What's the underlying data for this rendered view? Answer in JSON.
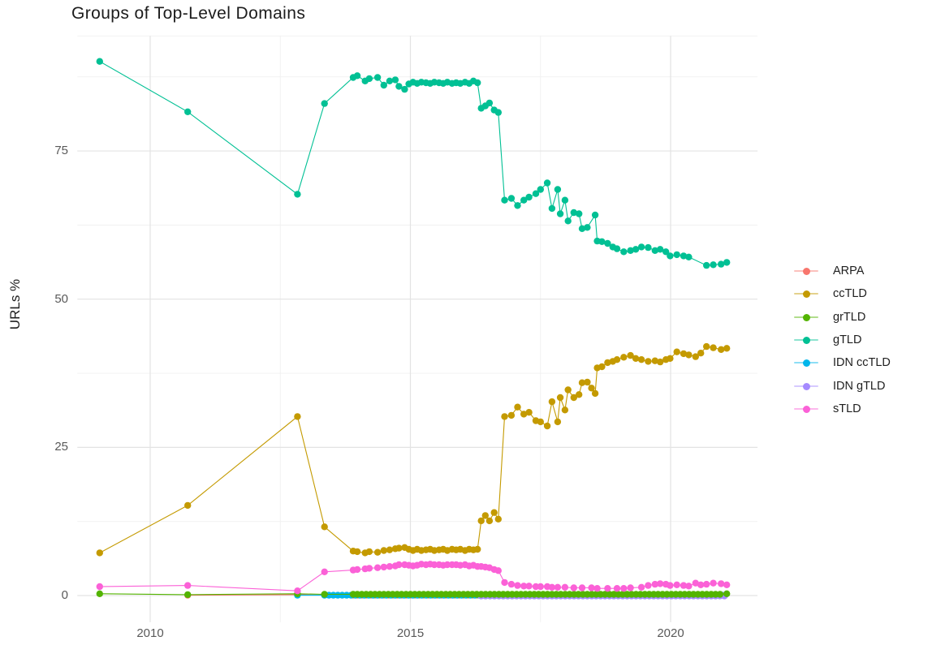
{
  "title": "Groups of Top-Level Domains",
  "chart_data": {
    "type": "line",
    "title": "Groups of Top-Level Domains",
    "xlabel": "",
    "ylabel": "URLs %",
    "x_ticks": [
      2010,
      2015,
      2020
    ],
    "x_tick_labels": [
      "2010",
      "2015",
      "2020"
    ],
    "x_minor_ticks": [
      2012.5,
      2017.5
    ],
    "y_ticks": [
      0,
      25,
      50,
      75
    ],
    "y_tick_labels": [
      "0",
      "25",
      "50",
      "75"
    ],
    "y_minor_ticks": [
      12.5,
      37.5,
      62.5,
      87.5
    ],
    "xlim": [
      2008.6,
      2021.67
    ],
    "ylim": [
      -4.5,
      94.4
    ],
    "grid": true,
    "legend_position": "right",
    "legend": [
      {
        "label": "ARPA",
        "color": "#F8766D"
      },
      {
        "label": "ccTLD",
        "color": "#C49A00"
      },
      {
        "label": "grTLD",
        "color": "#53B400"
      },
      {
        "label": "gTLD",
        "color": "#00C094"
      },
      {
        "label": "IDN ccTLD",
        "color": "#00B6EB"
      },
      {
        "label": "IDN gTLD",
        "color": "#A58AFF"
      },
      {
        "label": "sTLD",
        "color": "#FB61D7"
      }
    ],
    "series": [
      {
        "name": "ARPA",
        "color": "#F8766D",
        "points": [
          [
            2010.72,
            0.05
          ],
          [
            2012.83,
            0.15
          ],
          [
            2013.35,
            0.08
          ]
        ],
        "fill": {
          "from": 2013.9,
          "to": 2021.08,
          "step": 0.085,
          "value": 0.05
        }
      },
      {
        "name": "IDN ccTLD",
        "color": "#00B6EB",
        "points": [
          [
            2012.83,
            0.05
          ]
        ],
        "fill": {
          "from": 2013.35,
          "to": 2021.08,
          "step": 0.085,
          "value": 0.05
        }
      },
      {
        "name": "IDN gTLD",
        "color": "#A58AFF",
        "r": 4.6,
        "points": [],
        "fill": {
          "from": 2016.36,
          "to": 2021.08,
          "step": 0.085,
          "value": 0.0
        }
      },
      {
        "name": "grTLD",
        "color": "#53B400",
        "points": [
          [
            2009.03,
            0.3
          ],
          [
            2010.72,
            0.15
          ],
          [
            2012.83,
            0.3
          ],
          [
            2013.35,
            0.2
          ],
          [
            2013.9,
            0.2
          ]
        ],
        "fill": {
          "from": 2013.98,
          "to": 2021.0,
          "step": 0.085,
          "value": 0.2
        },
        "tail": [
          [
            2021.08,
            0.3
          ]
        ]
      },
      {
        "name": "gTLD",
        "color": "#00C094",
        "points": [
          [
            2009.03,
            90.1
          ],
          [
            2010.72,
            81.6
          ],
          [
            2012.83,
            67.7
          ],
          [
            2013.35,
            83.0
          ],
          [
            2013.9,
            87.4
          ],
          [
            2013.98,
            87.7
          ],
          [
            2014.13,
            86.8
          ],
          [
            2014.21,
            87.2
          ],
          [
            2014.37,
            87.4
          ],
          [
            2014.49,
            86.1
          ],
          [
            2014.6,
            86.8
          ],
          [
            2014.71,
            87.0
          ],
          [
            2014.78,
            85.9
          ],
          [
            2014.89,
            85.4
          ],
          [
            2014.97,
            86.3
          ],
          [
            2015.05,
            86.6
          ],
          [
            2015.13,
            86.4
          ],
          [
            2015.21,
            86.6
          ],
          [
            2015.3,
            86.5
          ],
          [
            2015.38,
            86.4
          ],
          [
            2015.46,
            86.6
          ],
          [
            2015.55,
            86.5
          ],
          [
            2015.63,
            86.4
          ],
          [
            2015.71,
            86.6
          ],
          [
            2015.8,
            86.4
          ],
          [
            2015.88,
            86.5
          ],
          [
            2015.96,
            86.4
          ],
          [
            2016.05,
            86.6
          ],
          [
            2016.13,
            86.4
          ],
          [
            2016.21,
            86.8
          ],
          [
            2016.29,
            86.5
          ],
          [
            2016.36,
            82.2
          ],
          [
            2016.44,
            82.6
          ],
          [
            2016.52,
            83.1
          ],
          [
            2016.61,
            81.9
          ],
          [
            2016.69,
            81.5
          ],
          [
            2016.81,
            66.7
          ],
          [
            2016.94,
            67.0
          ],
          [
            2017.06,
            65.8
          ],
          [
            2017.18,
            66.7
          ],
          [
            2017.28,
            67.2
          ],
          [
            2017.41,
            67.8
          ],
          [
            2017.5,
            68.5
          ],
          [
            2017.63,
            69.6
          ],
          [
            2017.72,
            65.3
          ],
          [
            2017.83,
            68.5
          ],
          [
            2017.88,
            64.4
          ],
          [
            2017.97,
            66.7
          ],
          [
            2018.03,
            63.2
          ],
          [
            2018.14,
            64.6
          ],
          [
            2018.24,
            64.4
          ],
          [
            2018.3,
            61.9
          ],
          [
            2018.4,
            62.1
          ],
          [
            2018.55,
            64.2
          ],
          [
            2018.59,
            59.8
          ],
          [
            2018.68,
            59.7
          ],
          [
            2018.79,
            59.4
          ],
          [
            2018.89,
            58.8
          ],
          [
            2018.97,
            58.5
          ],
          [
            2019.1,
            58.0
          ],
          [
            2019.23,
            58.2
          ],
          [
            2019.33,
            58.4
          ],
          [
            2019.44,
            58.8
          ],
          [
            2019.57,
            58.7
          ],
          [
            2019.7,
            58.2
          ],
          [
            2019.8,
            58.4
          ],
          [
            2019.91,
            58.0
          ],
          [
            2019.99,
            57.3
          ],
          [
            2020.12,
            57.5
          ],
          [
            2020.25,
            57.3
          ],
          [
            2020.35,
            57.1
          ],
          [
            2020.69,
            55.7
          ],
          [
            2020.82,
            55.8
          ],
          [
            2020.97,
            55.9
          ],
          [
            2021.08,
            56.2
          ]
        ]
      },
      {
        "name": "ccTLD",
        "color": "#C49A00",
        "points": [
          [
            2009.03,
            7.2
          ],
          [
            2010.72,
            15.2
          ],
          [
            2012.83,
            30.2
          ],
          [
            2013.35,
            11.6
          ],
          [
            2013.9,
            7.5
          ],
          [
            2013.98,
            7.4
          ],
          [
            2014.13,
            7.2
          ],
          [
            2014.21,
            7.4
          ],
          [
            2014.37,
            7.3
          ],
          [
            2014.49,
            7.6
          ],
          [
            2014.6,
            7.7
          ],
          [
            2014.71,
            7.9
          ],
          [
            2014.78,
            8.0
          ],
          [
            2014.89,
            8.1
          ],
          [
            2014.97,
            7.8
          ],
          [
            2015.05,
            7.6
          ],
          [
            2015.13,
            7.8
          ],
          [
            2015.21,
            7.6
          ],
          [
            2015.3,
            7.7
          ],
          [
            2015.38,
            7.8
          ],
          [
            2015.46,
            7.6
          ],
          [
            2015.55,
            7.7
          ],
          [
            2015.63,
            7.8
          ],
          [
            2015.71,
            7.6
          ],
          [
            2015.8,
            7.8
          ],
          [
            2015.88,
            7.7
          ],
          [
            2015.96,
            7.8
          ],
          [
            2016.05,
            7.6
          ],
          [
            2016.13,
            7.8
          ],
          [
            2016.21,
            7.7
          ],
          [
            2016.29,
            7.8
          ],
          [
            2016.36,
            12.6
          ],
          [
            2016.44,
            13.5
          ],
          [
            2016.52,
            12.6
          ],
          [
            2016.61,
            14.0
          ],
          [
            2016.69,
            12.9
          ],
          [
            2016.81,
            30.2
          ],
          [
            2016.94,
            30.4
          ],
          [
            2017.06,
            31.8
          ],
          [
            2017.18,
            30.6
          ],
          [
            2017.28,
            30.9
          ],
          [
            2017.41,
            29.5
          ],
          [
            2017.5,
            29.3
          ],
          [
            2017.63,
            28.6
          ],
          [
            2017.72,
            32.7
          ],
          [
            2017.83,
            29.3
          ],
          [
            2017.88,
            33.4
          ],
          [
            2017.97,
            31.3
          ],
          [
            2018.03,
            34.7
          ],
          [
            2018.14,
            33.4
          ],
          [
            2018.24,
            33.9
          ],
          [
            2018.3,
            35.9
          ],
          [
            2018.4,
            36.0
          ],
          [
            2018.48,
            35.0
          ],
          [
            2018.55,
            34.1
          ],
          [
            2018.59,
            38.4
          ],
          [
            2018.68,
            38.6
          ],
          [
            2018.79,
            39.3
          ],
          [
            2018.89,
            39.5
          ],
          [
            2018.97,
            39.8
          ],
          [
            2019.1,
            40.2
          ],
          [
            2019.23,
            40.5
          ],
          [
            2019.33,
            40.0
          ],
          [
            2019.44,
            39.8
          ],
          [
            2019.57,
            39.5
          ],
          [
            2019.7,
            39.6
          ],
          [
            2019.8,
            39.4
          ],
          [
            2019.91,
            39.8
          ],
          [
            2019.99,
            40.0
          ],
          [
            2020.12,
            41.1
          ],
          [
            2020.25,
            40.8
          ],
          [
            2020.35,
            40.6
          ],
          [
            2020.48,
            40.3
          ],
          [
            2020.58,
            40.9
          ],
          [
            2020.69,
            42.0
          ],
          [
            2020.82,
            41.8
          ],
          [
            2020.97,
            41.5
          ],
          [
            2021.08,
            41.7
          ]
        ]
      },
      {
        "name": "sTLD",
        "color": "#FB61D7",
        "points": [
          [
            2009.03,
            1.5
          ],
          [
            2010.72,
            1.7
          ],
          [
            2012.83,
            0.8
          ],
          [
            2013.35,
            4.0
          ],
          [
            2013.9,
            4.3
          ],
          [
            2013.98,
            4.4
          ],
          [
            2014.13,
            4.5
          ],
          [
            2014.21,
            4.6
          ],
          [
            2014.37,
            4.7
          ],
          [
            2014.49,
            4.8
          ],
          [
            2014.6,
            4.9
          ],
          [
            2014.71,
            5.0
          ],
          [
            2014.78,
            5.2
          ],
          [
            2014.89,
            5.2
          ],
          [
            2014.97,
            5.1
          ],
          [
            2015.05,
            5.0
          ],
          [
            2015.13,
            5.1
          ],
          [
            2015.21,
            5.3
          ],
          [
            2015.3,
            5.2
          ],
          [
            2015.38,
            5.3
          ],
          [
            2015.46,
            5.2
          ],
          [
            2015.55,
            5.2
          ],
          [
            2015.63,
            5.1
          ],
          [
            2015.71,
            5.2
          ],
          [
            2015.8,
            5.2
          ],
          [
            2015.88,
            5.2
          ],
          [
            2015.96,
            5.1
          ],
          [
            2016.05,
            5.2
          ],
          [
            2016.13,
            5.0
          ],
          [
            2016.21,
            5.1
          ],
          [
            2016.29,
            4.9
          ],
          [
            2016.36,
            4.9
          ],
          [
            2016.44,
            4.8
          ],
          [
            2016.52,
            4.7
          ],
          [
            2016.61,
            4.4
          ],
          [
            2016.69,
            4.2
          ],
          [
            2016.81,
            2.2
          ],
          [
            2016.94,
            1.9
          ],
          [
            2017.06,
            1.7
          ],
          [
            2017.18,
            1.6
          ],
          [
            2017.28,
            1.6
          ],
          [
            2017.41,
            1.5
          ],
          [
            2017.5,
            1.5
          ],
          [
            2017.63,
            1.5
          ],
          [
            2017.72,
            1.4
          ],
          [
            2017.83,
            1.4
          ],
          [
            2017.97,
            1.4
          ],
          [
            2018.14,
            1.3
          ],
          [
            2018.3,
            1.3
          ],
          [
            2018.48,
            1.3
          ],
          [
            2018.59,
            1.2
          ],
          [
            2018.79,
            1.2
          ],
          [
            2018.97,
            1.2
          ],
          [
            2019.1,
            1.2
          ],
          [
            2019.23,
            1.3
          ],
          [
            2019.44,
            1.4
          ],
          [
            2019.57,
            1.7
          ],
          [
            2019.7,
            1.9
          ],
          [
            2019.8,
            2.0
          ],
          [
            2019.91,
            1.9
          ],
          [
            2019.99,
            1.7
          ],
          [
            2020.12,
            1.8
          ],
          [
            2020.25,
            1.7
          ],
          [
            2020.35,
            1.6
          ],
          [
            2020.48,
            2.1
          ],
          [
            2020.58,
            1.8
          ],
          [
            2020.69,
            1.9
          ],
          [
            2020.82,
            2.1
          ],
          [
            2020.97,
            2.0
          ],
          [
            2021.08,
            1.8
          ]
        ]
      }
    ]
  }
}
